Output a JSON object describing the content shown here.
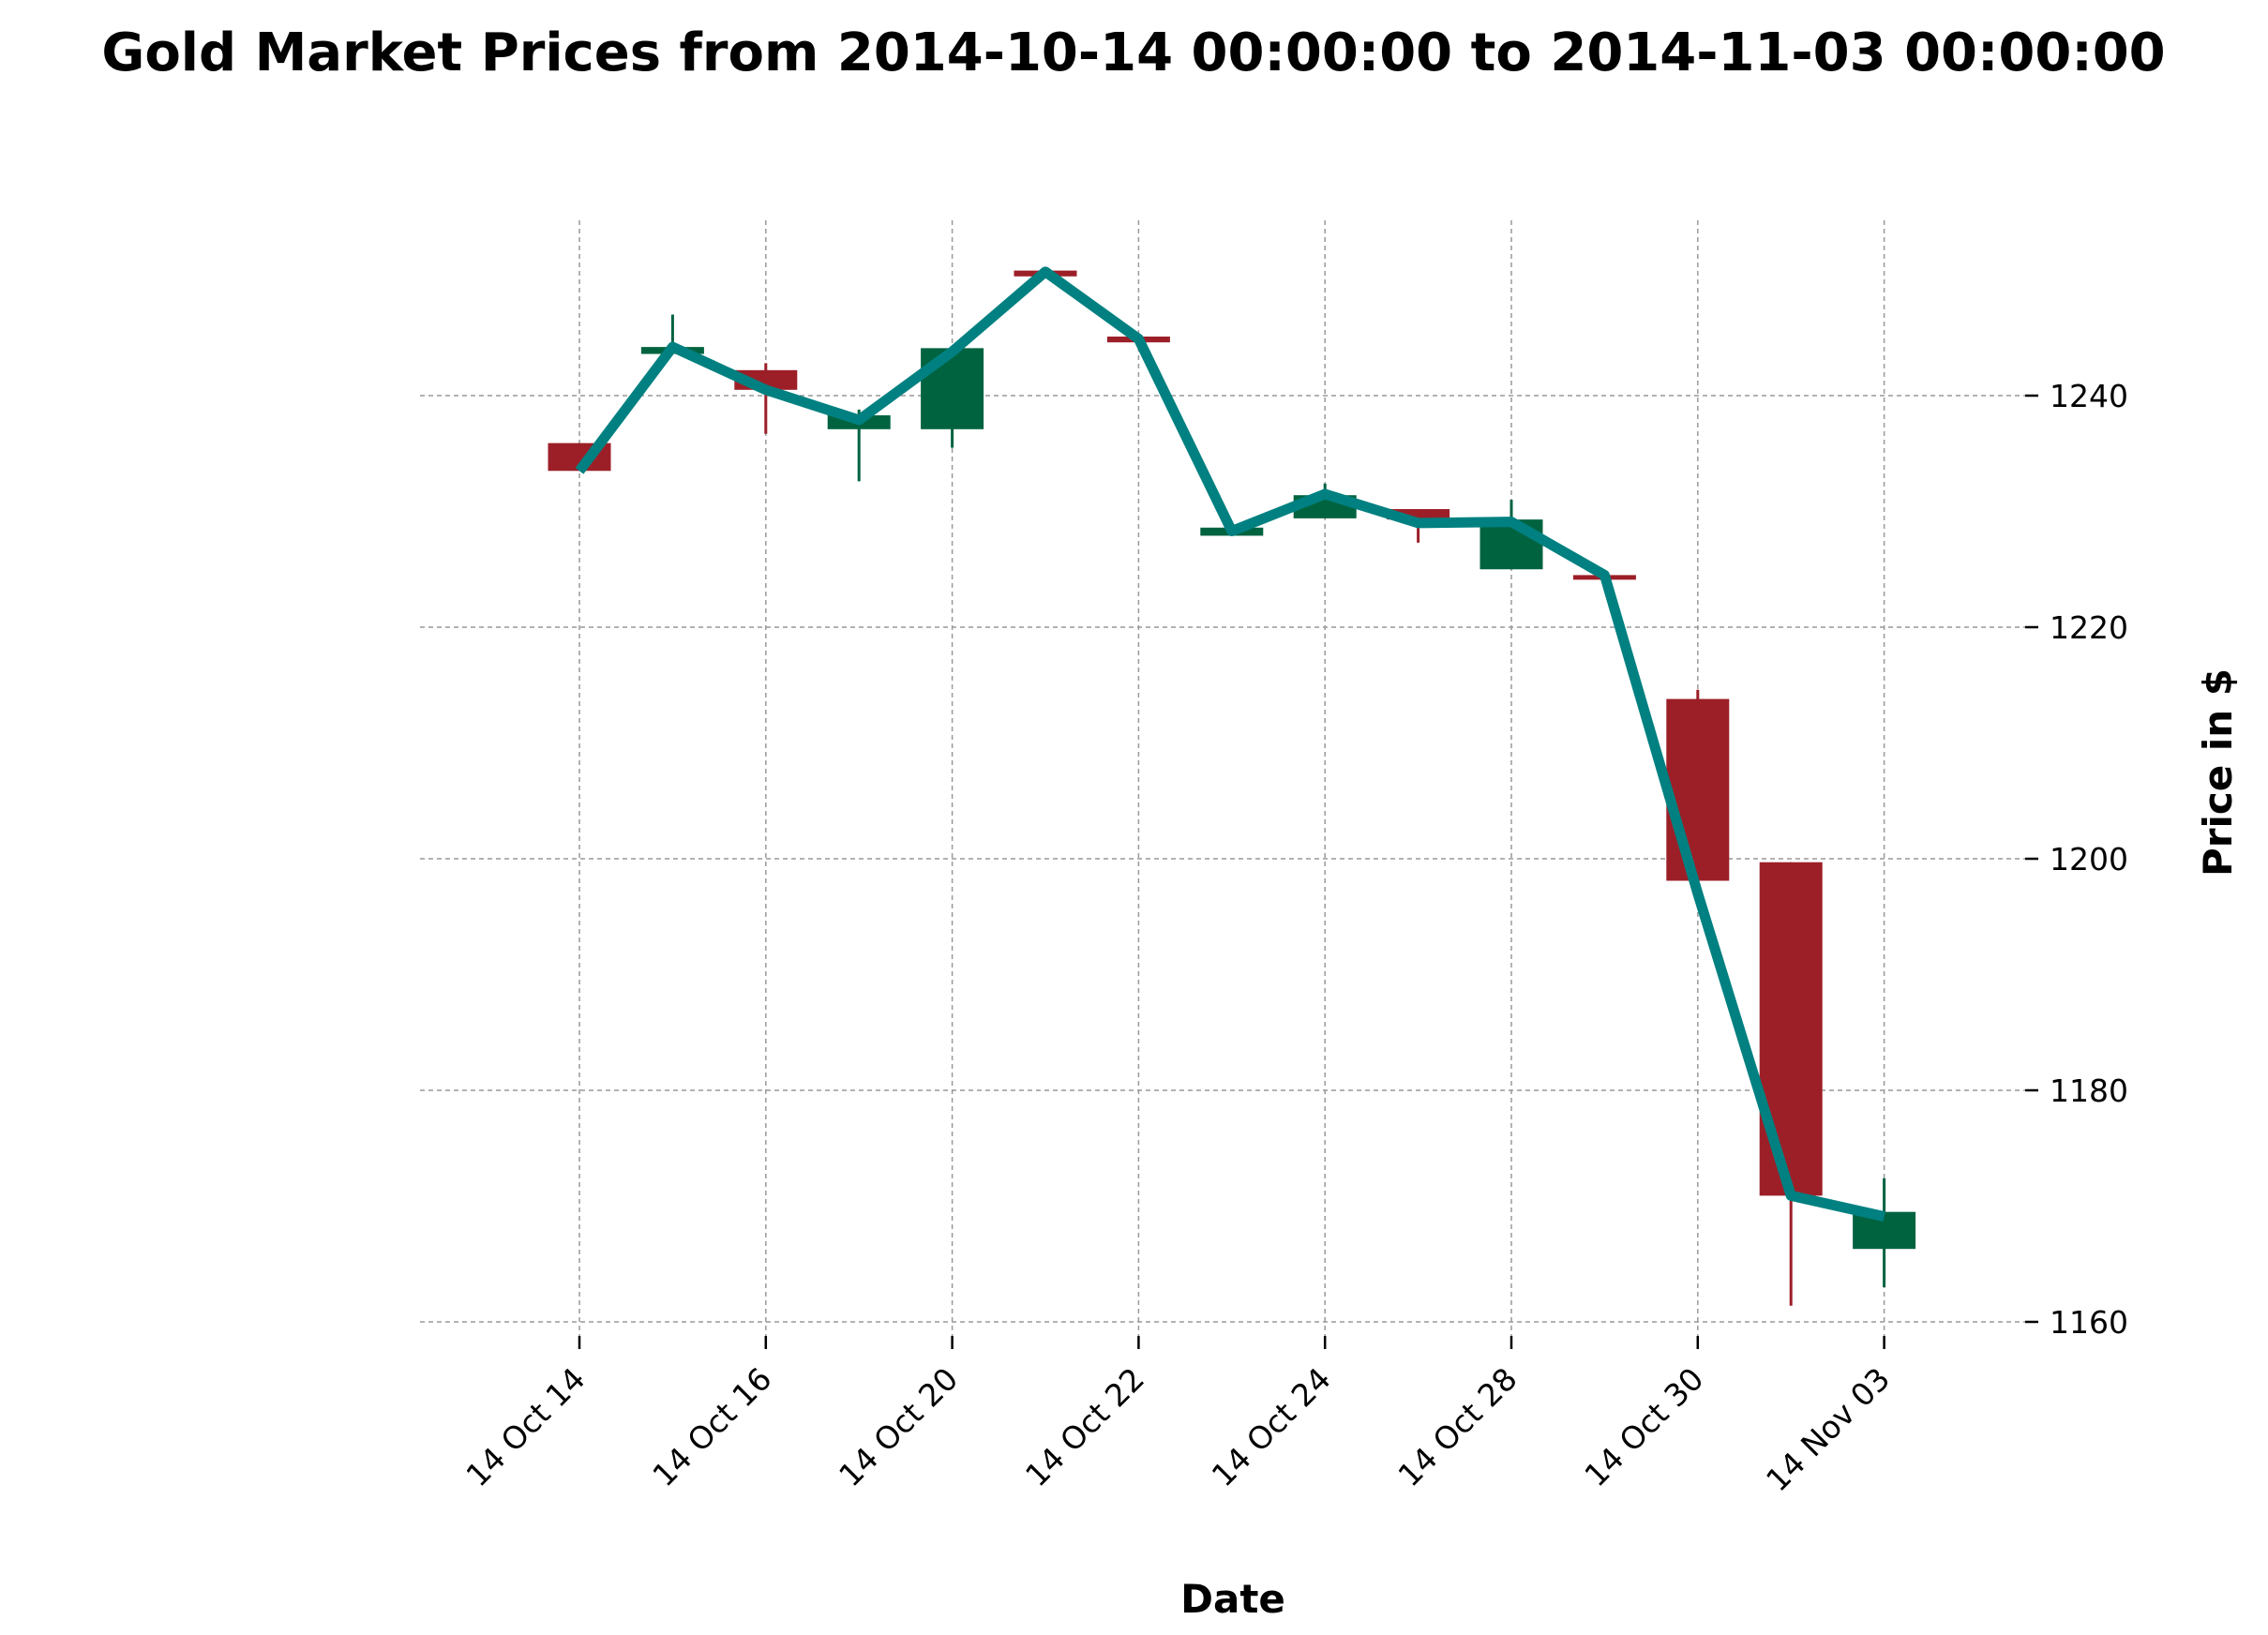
{
  "chart_data": {
    "type": "candlestick",
    "title": "Gold Market Prices from 2014-10-14 00:00:00 to 2014-11-03 00:00:00",
    "xlabel": "Date",
    "ylabel": "Price in $",
    "ylim": [
      1157,
      1260
    ],
    "yticks": [
      1160,
      1180,
      1200,
      1220,
      1240
    ],
    "grid": true,
    "colors": {
      "up": "#006340",
      "down": "#9c1f28",
      "line": "#008080"
    },
    "candles": [
      {
        "date": "2014-10-14",
        "open": 1235.9,
        "high": 1235.9,
        "low": 1233.5,
        "close": 1233.5
      },
      {
        "date": "2014-10-15",
        "open": 1243.6,
        "high": 1247.0,
        "low": 1243.6,
        "close": 1244.2
      },
      {
        "date": "2014-10-16",
        "open": 1242.2,
        "high": 1242.8,
        "low": 1236.7,
        "close": 1240.5
      },
      {
        "date": "2014-10-17",
        "open": 1237.1,
        "high": 1238.8,
        "low": 1232.6,
        "close": 1238.3
      },
      {
        "date": "2014-10-20",
        "open": 1237.1,
        "high": 1244.2,
        "low": 1235.5,
        "close": 1244.1
      },
      {
        "date": "2014-10-21",
        "open": 1250.8,
        "high": 1250.8,
        "low": 1250.3,
        "close": 1250.3
      },
      {
        "date": "2014-10-22",
        "open": 1245.1,
        "high": 1245.1,
        "low": 1244.6,
        "close": 1244.6
      },
      {
        "date": "2014-10-23",
        "open": 1227.9,
        "high": 1228.6,
        "low": 1227.9,
        "close": 1228.6
      },
      {
        "date": "2014-10-24",
        "open": 1229.4,
        "high": 1232.4,
        "low": 1229.4,
        "close": 1231.4
      },
      {
        "date": "2014-10-27",
        "open": 1230.2,
        "high": 1230.2,
        "low": 1227.3,
        "close": 1229.3
      },
      {
        "date": "2014-10-28",
        "open": 1225.0,
        "high": 1231.0,
        "low": 1225.0,
        "close": 1229.3
      },
      {
        "date": "2014-10-29",
        "open": 1224.5,
        "high": 1224.5,
        "low": 1224.1,
        "close": 1224.1
      },
      {
        "date": "2014-10-30",
        "open": 1213.8,
        "high": 1214.6,
        "low": 1196.2,
        "close": 1198.1
      },
      {
        "date": "2014-10-31",
        "open": 1199.7,
        "high": 1199.7,
        "low": 1161.4,
        "close": 1170.9
      },
      {
        "date": "2014-11-03",
        "open": 1166.3,
        "high": 1172.4,
        "low": 1163.0,
        "close": 1169.5
      }
    ],
    "line": [
      1233.5,
      1244.2,
      1240.5,
      1237.9,
      1243.8,
      1250.7,
      1244.9,
      1228.3,
      1231.5,
      1229.0,
      1229.1,
      1224.5,
      1197.0,
      1170.9,
      1169.1
    ],
    "x_tick_labels": [
      {
        "index": 0,
        "label": "14 Oct 14"
      },
      {
        "index": 2,
        "label": "14 Oct 16"
      },
      {
        "index": 4,
        "label": "14 Oct 20"
      },
      {
        "index": 6,
        "label": "14 Oct 22"
      },
      {
        "index": 8,
        "label": "14 Oct 24"
      },
      {
        "index": 10,
        "label": "14 Oct 28"
      },
      {
        "index": 12,
        "label": "14 Oct 30"
      },
      {
        "index": 14,
        "label": "14 Nov 03"
      }
    ]
  }
}
